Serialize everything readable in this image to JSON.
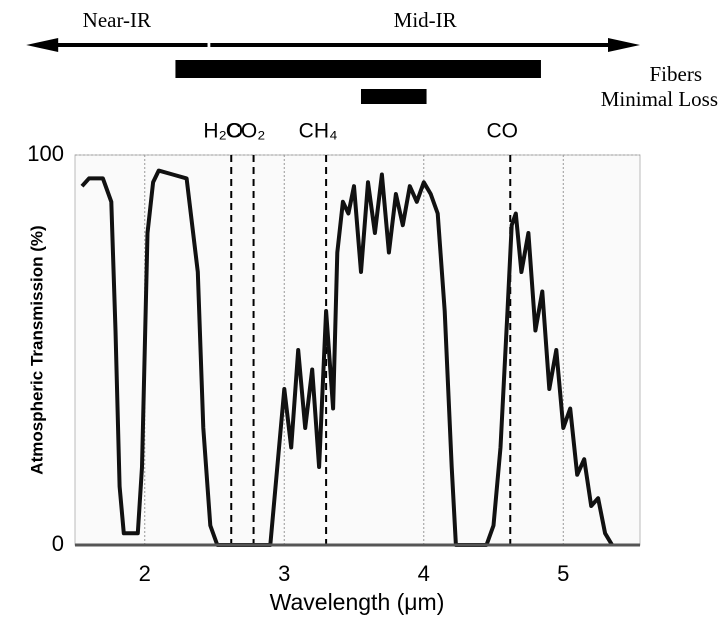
{
  "chart_data": {
    "type": "line",
    "xlabel": "Wavelength (μm)",
    "ylabel": "Atmospheric Transmission (%)",
    "x": [
      1.55,
      1.6,
      1.7,
      1.76,
      1.79,
      1.82,
      1.85,
      1.95,
      1.98,
      2.02,
      2.06,
      2.1,
      2.2,
      2.3,
      2.38,
      2.42,
      2.47,
      2.52,
      2.9,
      2.95,
      3.0,
      3.05,
      3.1,
      3.15,
      3.2,
      3.25,
      3.3,
      3.35,
      3.38,
      3.42,
      3.46,
      3.5,
      3.55,
      3.6,
      3.65,
      3.7,
      3.75,
      3.8,
      3.85,
      3.9,
      3.95,
      4.0,
      4.05,
      4.1,
      4.15,
      4.2,
      4.23,
      4.45,
      4.5,
      4.55,
      4.6,
      4.63,
      4.66,
      4.7,
      4.75,
      4.8,
      4.85,
      4.9,
      4.95,
      5.0,
      5.05,
      5.1,
      5.15,
      5.2,
      5.25,
      5.3,
      5.35
    ],
    "series": [
      {
        "color": "#111111",
        "values": [
          92,
          94,
          94,
          88,
          55,
          15,
          3,
          3,
          20,
          80,
          93,
          96,
          95,
          94,
          70,
          30,
          5,
          0,
          0,
          20,
          40,
          25,
          50,
          30,
          45,
          20,
          60,
          35,
          75,
          88,
          85,
          92,
          70,
          93,
          80,
          95,
          75,
          90,
          82,
          92,
          88,
          93,
          90,
          85,
          60,
          20,
          0,
          0,
          5,
          25,
          60,
          82,
          85,
          70,
          80,
          55,
          65,
          40,
          50,
          30,
          35,
          18,
          22,
          10,
          12,
          3,
          0
        ]
      }
    ],
    "xlim": [
      1.5,
      5.55
    ],
    "xticks": [
      2,
      3,
      4,
      5
    ],
    "ylim": [
      0,
      100
    ],
    "yticks": [
      0,
      100
    ],
    "grid": true,
    "markers": [
      {
        "label": "H₂O",
        "x": 2.62
      },
      {
        "label": "CO₂",
        "x": 2.78
      },
      {
        "label": "CH₄",
        "x": 3.3
      },
      {
        "label": "CO",
        "x": 4.62
      }
    ],
    "arrows": [
      {
        "label": "Near-IR",
        "from": 2.45,
        "to": 1.15
      },
      {
        "label": "Mid-IR",
        "from": 2.47,
        "to": 5.55
      }
    ],
    "bands": [
      {
        "label": "Fibers",
        "range": [
          2.22,
          4.84
        ]
      },
      {
        "label": "Minimal Loss",
        "range": [
          3.55,
          4.02
        ]
      }
    ]
  }
}
